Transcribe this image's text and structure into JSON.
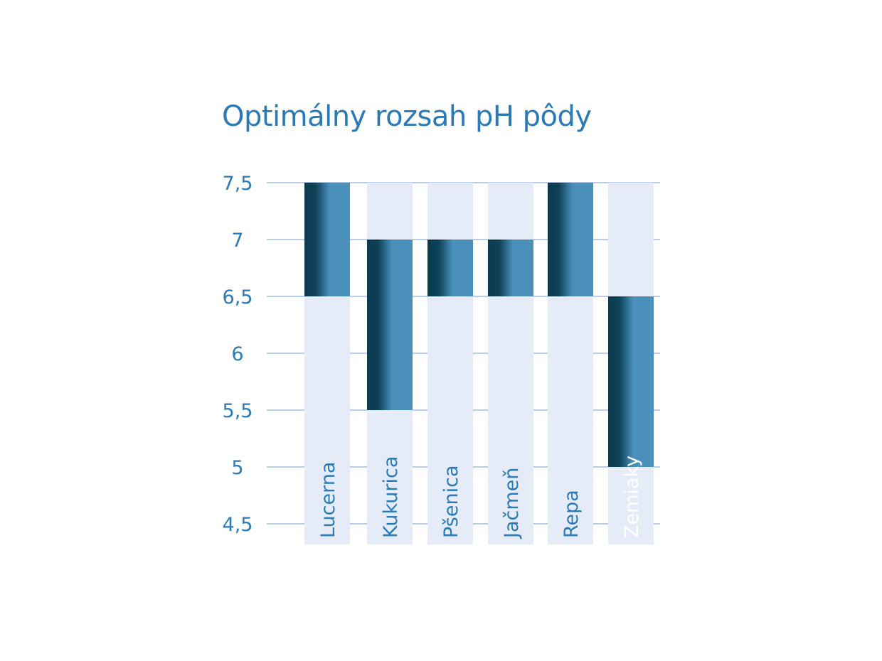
{
  "chart_data": {
    "type": "bar",
    "subtype": "floating-range",
    "title": "Optimálny rozsah pH pôdy",
    "categories": [
      "Lucerna",
      "Kukurica",
      "Pšenica",
      "Jačmeň",
      "Repa",
      "Zemiaky"
    ],
    "ranges": [
      {
        "low": 6.5,
        "high": 7.5
      },
      {
        "low": 5.5,
        "high": 7.0
      },
      {
        "low": 6.5,
        "high": 7.0
      },
      {
        "low": 6.5,
        "high": 7.0
      },
      {
        "low": 6.5,
        "high": 7.5
      },
      {
        "low": 5.0,
        "high": 6.5
      }
    ],
    "yticks": [
      7.5,
      7,
      6.5,
      6,
      5.5,
      5,
      4.5
    ],
    "ytick_labels": [
      "7,5",
      "7",
      "6,5",
      "6",
      "5,5",
      "5",
      "4,5"
    ],
    "ylim": [
      4.5,
      7.5
    ],
    "grid": true,
    "colors": {
      "title": "#2a7ab8",
      "tick_labels": "#2a7ab8",
      "grid": "#b9cdea",
      "track": "#e5ecf8",
      "bar_dark": "#0b3a4e",
      "bar_light": "#4a90bb",
      "label_on_track": "#2a7ab8",
      "label_on_bar": "#ffffff"
    }
  }
}
